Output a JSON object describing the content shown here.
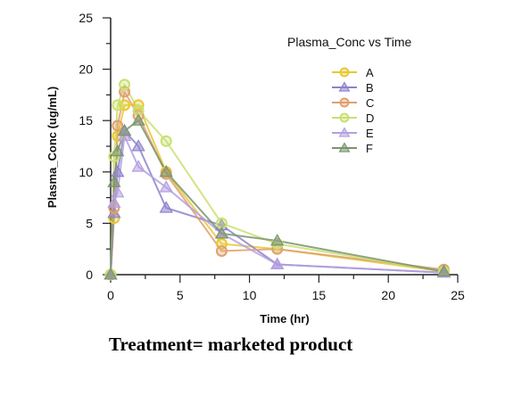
{
  "caption": "Treatment= marketed product",
  "chart_data": {
    "type": "line",
    "title": "Plasma_Conc vs Time",
    "xlabel": "Time (hr)",
    "ylabel": "Plasma_Conc (ug/mL)",
    "xlim": [
      0,
      25
    ],
    "ylim": [
      0,
      25
    ],
    "xticks": [
      0,
      5,
      10,
      15,
      20,
      25
    ],
    "yticks": [
      0,
      5,
      10,
      15,
      20,
      25
    ],
    "grid": false,
    "legend_position": "top-right",
    "x": [
      0,
      0.25,
      0.5,
      1,
      2,
      4,
      8,
      12,
      24
    ],
    "series": [
      {
        "name": "A",
        "color": "#e8c832",
        "marker": "circle",
        "values": [
          0,
          5.5,
          13.5,
          16.5,
          16.5,
          10,
          3,
          2.5,
          0.3
        ]
      },
      {
        "name": "B",
        "color": "#8c82cc",
        "marker": "triangle",
        "values": [
          0,
          6,
          10,
          14,
          12.5,
          6.5,
          4.8,
          1,
          0.2
        ]
      },
      {
        "name": "C",
        "color": "#e0a070",
        "marker": "circle",
        "values": [
          0,
          6.5,
          14.5,
          17.8,
          15.5,
          9.8,
          2.3,
          2.5,
          0.5
        ]
      },
      {
        "name": "D",
        "color": "#c8e070",
        "marker": "circle",
        "values": [
          0,
          11.5,
          16.5,
          18.5,
          16,
          13,
          5,
          3,
          0.3
        ]
      },
      {
        "name": "E",
        "color": "#b4a0e0",
        "marker": "triangle",
        "values": [
          0,
          7,
          8,
          13.5,
          10.5,
          8.5,
          4,
          1,
          0.2
        ]
      },
      {
        "name": "F",
        "color": "#7a9470",
        "marker": "triangle",
        "values": [
          0,
          9,
          12,
          14,
          15,
          10,
          4,
          3.3,
          0.3
        ]
      }
    ]
  }
}
